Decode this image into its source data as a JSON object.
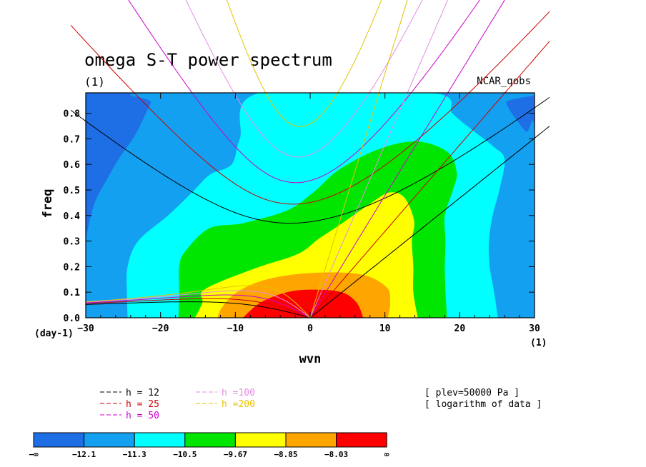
{
  "chart_data": {
    "type": "heatmap",
    "title": "omega S-T power spectrum",
    "subtitle": "(1)",
    "source_label": "NCAR_qobs",
    "xlabel": "wvn",
    "ylabel": "freq",
    "x_unit": "(1)",
    "y_unit": "(day-1)",
    "xlim": [
      -30,
      30
    ],
    "ylim": [
      0,
      0.88
    ],
    "x_ticks": [
      -30,
      -20,
      -10,
      0,
      10,
      20,
      30
    ],
    "y_ticks": [
      0.0,
      0.1,
      0.2,
      0.3,
      0.4,
      0.5,
      0.6,
      0.7,
      0.8
    ],
    "x_tick_labels": [
      "−30",
      "−20",
      "−10",
      "0",
      "10",
      "20",
      "30"
    ],
    "y_tick_labels": [
      "0.0",
      "0.1",
      "0.2",
      "0.3",
      "0.4",
      "0.5",
      "0.6",
      "0.7",
      "0.8"
    ],
    "annotations": [
      "[ plev=50000 Pa ]",
      "[ logarithm of data ]"
    ],
    "colorbar": {
      "labels": [
        "−∞",
        "−12.1",
        "−11.3",
        "−10.5",
        "−9.67",
        "−8.85",
        "−8.03",
        "∞"
      ],
      "colors": [
        "#1e6ee6",
        "#14a0f0",
        "#00ffff",
        "#00e600",
        "#ffff00",
        "#ffa500",
        "#ff0000"
      ]
    },
    "dispersion_curves": [
      {
        "name": "h = 12",
        "h": 12,
        "color": "#000000"
      },
      {
        "name": "h = 25",
        "h": 25,
        "color": "#cc0000"
      },
      {
        "name": "h = 50",
        "h": 50,
        "color": "#cc00cc"
      },
      {
        "name": "h =100",
        "h": 100,
        "color": "#e28ee2"
      },
      {
        "name": "h =200",
        "h": 200,
        "color": "#e6c300"
      }
    ],
    "contour_levels": [
      {
        "level": "-12.1",
        "color": "#14a0f0",
        "boundary": [
          [
            -30,
            0.31
          ],
          [
            -28.8,
            0.45
          ],
          [
            -27,
            0.55
          ],
          [
            -25.4,
            0.63
          ],
          [
            -23.3,
            0.72
          ],
          [
            -21.3,
            0.84
          ],
          [
            -20.3,
            0.88
          ],
          [
            27.2,
            0.88
          ],
          [
            26.2,
            0.84
          ],
          [
            28.8,
            0.73
          ],
          [
            30,
            0.72
          ],
          [
            30,
            0
          ],
          [
            -30,
            0
          ]
        ]
      },
      {
        "level": "-11.3",
        "color": "#00ffff",
        "boundary": [
          [
            -24.4,
            0
          ],
          [
            -24.5,
            0.1
          ],
          [
            -24.4,
            0.2
          ],
          [
            -23,
            0.3
          ],
          [
            -19,
            0.4
          ],
          [
            -15.8,
            0.49
          ],
          [
            -13.4,
            0.56
          ],
          [
            -10.5,
            0.6
          ],
          [
            -9.4,
            0.7
          ],
          [
            -6.7,
            0.88
          ],
          [
            16.2,
            0.88
          ],
          [
            19,
            0.8
          ],
          [
            21,
            0.75
          ],
          [
            24.5,
            0.67
          ],
          [
            26,
            0.62
          ],
          [
            25.3,
            0.5
          ],
          [
            24.4,
            0.4
          ],
          [
            23.9,
            0.3
          ],
          [
            24,
            0.2
          ],
          [
            24.6,
            0.1
          ],
          [
            25.1,
            0
          ]
        ]
      },
      {
        "level": "-10.5",
        "color": "#00e600",
        "boundary": [
          [
            -17.6,
            0
          ],
          [
            -17.5,
            0.1
          ],
          [
            -17.5,
            0.2
          ],
          [
            -16.7,
            0.26
          ],
          [
            -13.5,
            0.35
          ],
          [
            -9,
            0.37
          ],
          [
            -3.1,
            0.42
          ],
          [
            0.4,
            0.49
          ],
          [
            3.9,
            0.58
          ],
          [
            9.2,
            0.66
          ],
          [
            14.2,
            0.69
          ],
          [
            18.3,
            0.65
          ],
          [
            19.6,
            0.57
          ],
          [
            19.1,
            0.5
          ],
          [
            18,
            0.4
          ],
          [
            18.1,
            0.3
          ],
          [
            18,
            0.2
          ],
          [
            18.1,
            0.1
          ],
          [
            18.3,
            0
          ]
        ]
      },
      {
        "level": "-9.67",
        "color": "#ffff00",
        "boundary": [
          [
            -15.4,
            0
          ],
          [
            -14.4,
            0.06
          ],
          [
            -14.5,
            0.1
          ],
          [
            -12.1,
            0.14
          ],
          [
            -6.7,
            0.2
          ],
          [
            -1.6,
            0.25
          ],
          [
            1.2,
            0.31
          ],
          [
            4.3,
            0.37
          ],
          [
            8.2,
            0.45
          ],
          [
            10.6,
            0.49
          ],
          [
            12.6,
            0.47
          ],
          [
            13.9,
            0.38
          ],
          [
            13.6,
            0.3
          ],
          [
            13.8,
            0.2
          ],
          [
            13.8,
            0.1
          ],
          [
            14.4,
            0
          ]
        ]
      },
      {
        "level": "-8.85",
        "color": "#ffa500",
        "boundary": [
          [
            -12.4,
            0
          ],
          [
            -11.8,
            0.04
          ],
          [
            -9.8,
            0.1
          ],
          [
            -5.8,
            0.15
          ],
          [
            0,
            0.175
          ],
          [
            6.7,
            0.17
          ],
          [
            10.2,
            0.12
          ],
          [
            10.7,
            0.06
          ],
          [
            10.4,
            0
          ]
        ]
      },
      {
        "level": "-8.03",
        "color": "#ff0000",
        "boundary": [
          [
            -9,
            0
          ],
          [
            -6.6,
            0.06
          ],
          [
            -3.1,
            0.1
          ],
          [
            0.4,
            0.11
          ],
          [
            4.2,
            0.1
          ],
          [
            6.2,
            0.06
          ],
          [
            7.1,
            0
          ]
        ]
      }
    ]
  }
}
